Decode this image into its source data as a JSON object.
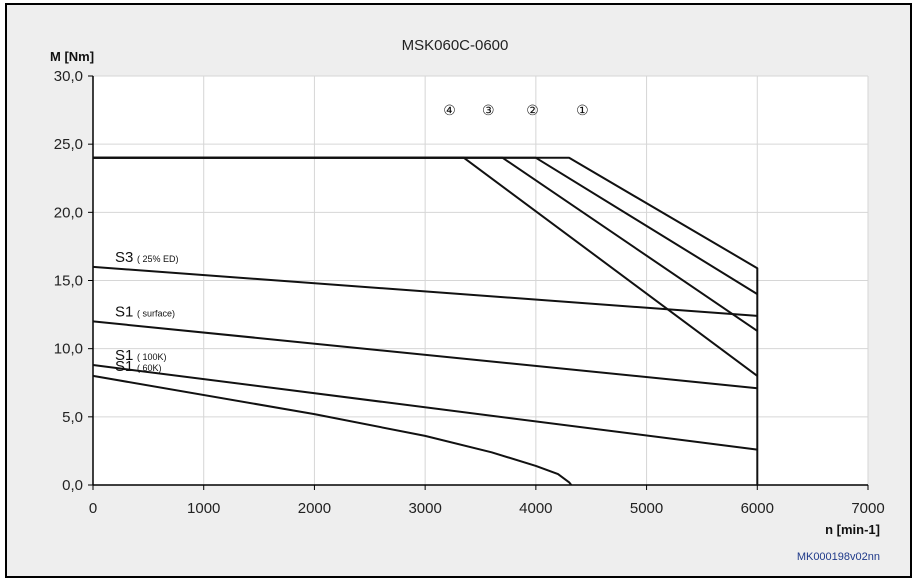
{
  "chart_data": {
    "type": "line",
    "title": "MSK060C-0600",
    "ylabel": "M [Nm]",
    "xlabel": "n [min-1]",
    "xlim": [
      0,
      7000
    ],
    "ylim": [
      0,
      30
    ],
    "x_ticks": [
      0,
      1000,
      2000,
      3000,
      4000,
      5000,
      6000,
      7000
    ],
    "x_tick_labels": [
      "0",
      "1000",
      "2000",
      "3000",
      "4000",
      "5000",
      "6000",
      "7000"
    ],
    "y_ticks": [
      0,
      5,
      10,
      15,
      20,
      25,
      30
    ],
    "y_tick_labels": [
      "0,0",
      "5,0",
      "10,0",
      "15,0",
      "20,0",
      "25,0",
      "30,0"
    ],
    "grid": true,
    "code": "MK000198v02nn",
    "series": [
      {
        "name": "①",
        "points": [
          [
            0,
            24
          ],
          [
            4300,
            24
          ],
          [
            6000,
            15.9
          ],
          [
            6000,
            0
          ]
        ]
      },
      {
        "name": "②",
        "points": [
          [
            0,
            24
          ],
          [
            4000,
            24
          ],
          [
            6000,
            14
          ]
        ]
      },
      {
        "name": "③",
        "points": [
          [
            0,
            24
          ],
          [
            3700,
            24
          ],
          [
            6000,
            11.3
          ]
        ]
      },
      {
        "name": "④",
        "points": [
          [
            0,
            24
          ],
          [
            3350,
            24
          ],
          [
            6000,
            8
          ]
        ]
      },
      {
        "name": "S3",
        "sublabel": "( 25% ED)",
        "points": [
          [
            0,
            16
          ],
          [
            6000,
            12.4
          ]
        ]
      },
      {
        "name": "S1",
        "sublabel": "( surface)",
        "points": [
          [
            0,
            12
          ],
          [
            6000,
            7.1
          ]
        ]
      },
      {
        "name": "S1",
        "sublabel": "( 100K)",
        "points": [
          [
            0,
            8.8
          ],
          [
            6000,
            2.6
          ]
        ]
      },
      {
        "name": "S1",
        "sublabel": "( 60K)",
        "points": [
          [
            0,
            8
          ],
          [
            2000,
            5.2
          ],
          [
            3000,
            3.6
          ],
          [
            3600,
            2.4
          ],
          [
            4000,
            1.4
          ],
          [
            4200,
            0.8
          ],
          [
            4300,
            0.2
          ],
          [
            4320,
            0
          ]
        ]
      }
    ],
    "markers": [
      {
        "label": "④",
        "x": 3220
      },
      {
        "label": "③",
        "x": 3570
      },
      {
        "label": "②",
        "x": 3970
      },
      {
        "label": "①",
        "x": 4420
      }
    ],
    "curve_labels": [
      {
        "label": "S3",
        "sublabel": "( 25% ED)",
        "x": 0,
        "y": 16
      },
      {
        "label": "S1",
        "sublabel": "( surface)",
        "x": 0,
        "y": 12
      },
      {
        "label": "S1",
        "sublabel": "( 100K)",
        "x": 0,
        "y": 8.8
      },
      {
        "label": "S1",
        "sublabel": "( 60K)",
        "x": 0,
        "y": 8
      }
    ]
  }
}
